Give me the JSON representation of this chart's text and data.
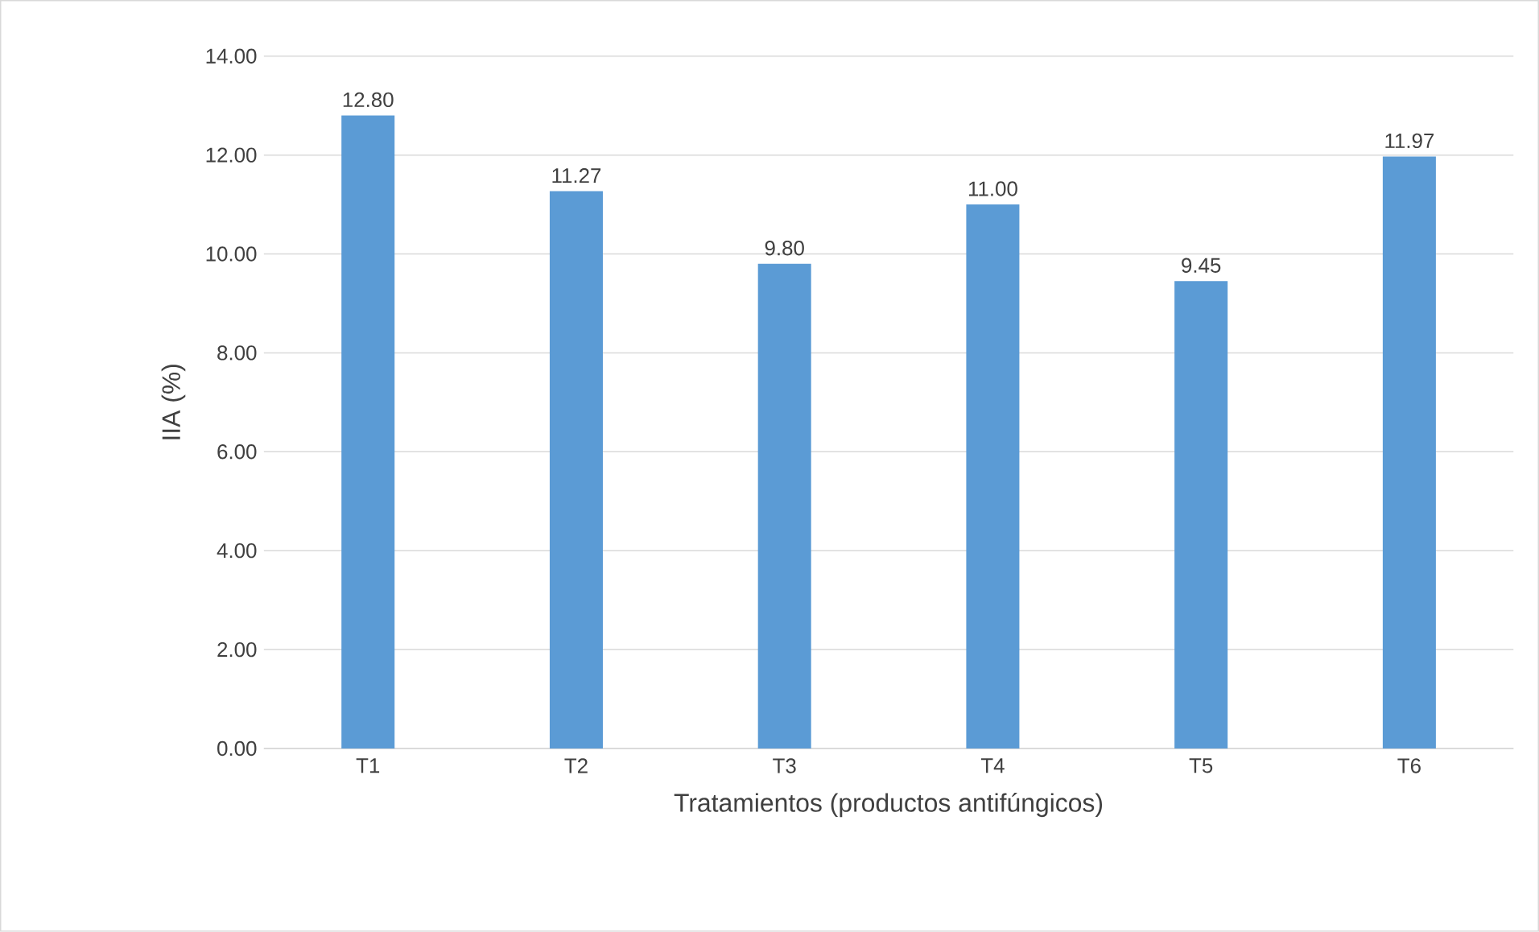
{
  "chart_data": {
    "type": "bar",
    "xlabel": "Tratamientos (productos antifúngicos)",
    "ylabel": "IIA (%)",
    "categories": [
      "T1",
      "T2",
      "T3",
      "T4",
      "T5",
      "T6"
    ],
    "values": [
      12.8,
      11.27,
      9.8,
      11.0,
      9.45,
      11.97
    ],
    "value_labels": [
      "12.80",
      "11.27",
      "9.80",
      "11.00",
      "9.45",
      "11.97"
    ],
    "color": "#5b9bd5",
    "ylim": [
      0,
      14
    ],
    "yticks": [
      {
        "value": 0,
        "label": "0.00"
      },
      {
        "value": 2,
        "label": "2.00"
      },
      {
        "value": 4,
        "label": "4.00"
      },
      {
        "value": 6,
        "label": "6.00"
      },
      {
        "value": 8,
        "label": "8.00"
      },
      {
        "value": 10,
        "label": "10.00"
      },
      {
        "value": 12,
        "label": "12.00"
      },
      {
        "value": 14,
        "label": "14.00"
      }
    ],
    "grid": "y"
  }
}
